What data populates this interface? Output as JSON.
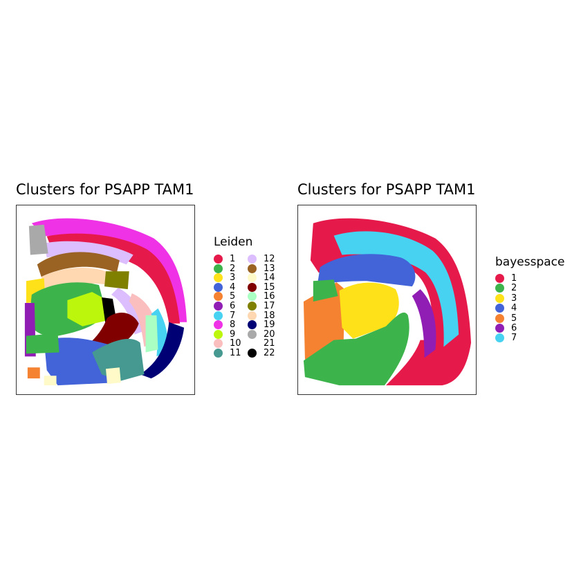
{
  "chart_data": [
    {
      "type": "scatter",
      "title": "Clusters for PSAPP TAM1",
      "legend": {
        "title": "Leiden",
        "placement": "right",
        "columns": 2,
        "entries": [
          {
            "label": "1",
            "color": "#e6194b"
          },
          {
            "label": "2",
            "color": "#3cb44b"
          },
          {
            "label": "3",
            "color": "#ffe119"
          },
          {
            "label": "4",
            "color": "#4363d8"
          },
          {
            "label": "5",
            "color": "#f58231"
          },
          {
            "label": "6",
            "color": "#911eb4"
          },
          {
            "label": "7",
            "color": "#46d2f0"
          },
          {
            "label": "8",
            "color": "#f032e6"
          },
          {
            "label": "9",
            "color": "#bcf60c"
          },
          {
            "label": "10",
            "color": "#fabebe"
          },
          {
            "label": "11",
            "color": "#469990"
          },
          {
            "label": "12",
            "color": "#dcbeff"
          },
          {
            "label": "13",
            "color": "#9a6324"
          },
          {
            "label": "14",
            "color": "#fffac8"
          },
          {
            "label": "15",
            "color": "#800000"
          },
          {
            "label": "16",
            "color": "#aaffc3"
          },
          {
            "label": "17",
            "color": "#808000"
          },
          {
            "label": "18",
            "color": "#ffd8b1"
          },
          {
            "label": "19",
            "color": "#000075"
          },
          {
            "label": "20",
            "color": "#a9a9a9"
          },
          {
            "label": "21",
            "color": "#ffffff"
          },
          {
            "label": "22",
            "color": "#000000"
          }
        ]
      },
      "grid": false
    },
    {
      "type": "scatter",
      "title": "Clusters for PSAPP TAM1",
      "legend": {
        "title": "bayesspace",
        "placement": "right",
        "columns": 1,
        "entries": [
          {
            "label": "1",
            "color": "#e6194b"
          },
          {
            "label": "2",
            "color": "#3cb44b"
          },
          {
            "label": "3",
            "color": "#ffe119"
          },
          {
            "label": "4",
            "color": "#4363d8"
          },
          {
            "label": "5",
            "color": "#f58231"
          },
          {
            "label": "6",
            "color": "#911eb4"
          },
          {
            "label": "7",
            "color": "#46d2f0"
          }
        ]
      },
      "grid": false
    }
  ]
}
